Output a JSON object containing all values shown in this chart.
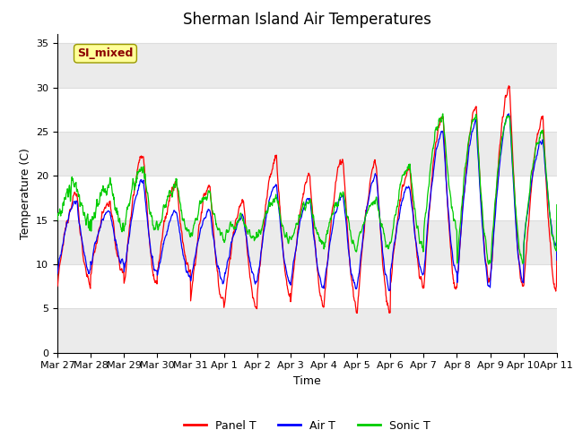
{
  "title": "Sherman Island Air Temperatures",
  "xlabel": "Time",
  "ylabel": "Temperature (C)",
  "ylim": [
    0,
    36
  ],
  "yticks": [
    0,
    5,
    10,
    15,
    20,
    25,
    30,
    35
  ],
  "annotation_text": "SI_mixed",
  "annotation_color": "#8B0000",
  "annotation_bg": "#FFFF99",
  "fig_bg": "#FFFFFF",
  "plot_bg": "#FFFFFF",
  "grid_color": "#DDDDDD",
  "alt_band_color": "#EBEBEB",
  "line_colors": {
    "panel": "#FF0000",
    "air": "#0000FF",
    "sonic": "#00CC00"
  },
  "date_labels": [
    "Mar 27",
    "Mar 28",
    "Mar 29",
    "Mar 30",
    "Mar 31",
    "Apr 1",
    "Apr 2",
    "Apr 3",
    "Apr 4",
    "Apr 5",
    "Apr 6",
    "Apr 7",
    "Apr 8",
    "Apr 9",
    "Apr 10",
    "Apr 11"
  ],
  "date_positions": [
    0,
    1,
    2,
    3,
    4,
    5,
    6,
    7,
    8,
    9,
    10,
    11,
    12,
    13,
    14,
    15
  ],
  "legend_labels": [
    "Panel T",
    "Air T",
    "Sonic T"
  ],
  "title_fontsize": 12,
  "label_fontsize": 9,
  "tick_fontsize": 8
}
